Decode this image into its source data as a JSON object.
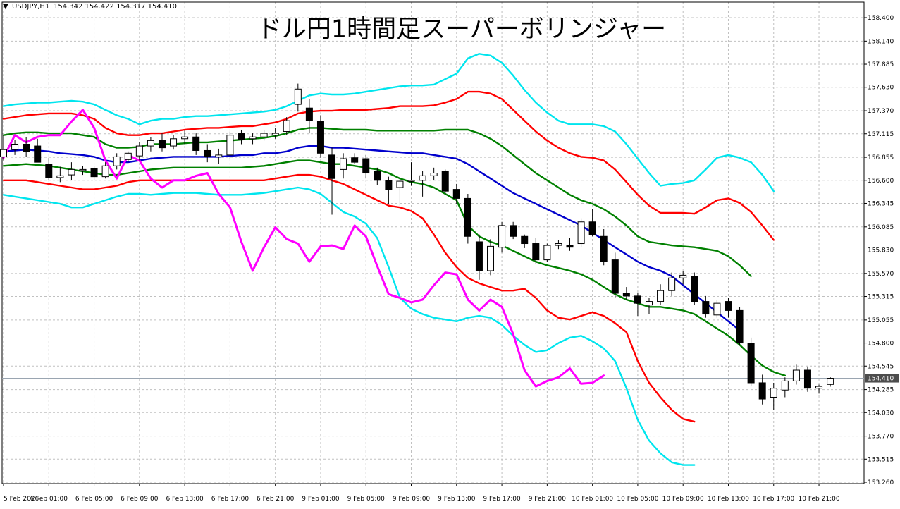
{
  "header": {
    "symbol": "USDJPY,H1",
    "ohlc": "154.342 154.422 154.317 154.410",
    "title": "ドル円1時間足スーパーボリンジャー"
  },
  "colors": {
    "background": "#ffffff",
    "grid": "#c0c0c0",
    "axis": "#000000",
    "up_candle_fill": "#ffffff",
    "down_candle_fill": "#000000",
    "sma": "#0000cc",
    "band1": "#008000",
    "band2": "#ff0000",
    "band3": "#00e5ee",
    "lagging_span": "#ff00ff",
    "price_line": "#9aa5b1",
    "price_label_bg": "#4d4d4d"
  },
  "chart_data": {
    "type": "line",
    "ylim": [
      153.26,
      158.4
    ],
    "xlim": [
      0,
      94
    ],
    "y_ticks": [
      "158.400",
      "158.140",
      "157.885",
      "157.630",
      "157.370",
      "157.115",
      "156.855",
      "156.600",
      "156.345",
      "156.085",
      "155.830",
      "155.570",
      "155.315",
      "155.055",
      "154.800",
      "154.545",
      "154.285",
      "154.030",
      "153.770",
      "153.515",
      "153.260"
    ],
    "x_ticks": [
      {
        "label": "5 Feb 2026",
        "i": 0
      },
      {
        "label": "6 Feb 01:00",
        "i": 4
      },
      {
        "label": "6 Feb 05:00",
        "i": 8
      },
      {
        "label": "6 Feb 09:00",
        "i": 12
      },
      {
        "label": "6 Feb 13:00",
        "i": 16
      },
      {
        "label": "6 Feb 17:00",
        "i": 20
      },
      {
        "label": "6 Feb 21:00",
        "i": 24
      },
      {
        "label": "9 Feb 01:00",
        "i": 28
      },
      {
        "label": "9 Feb 05:00",
        "i": 32
      },
      {
        "label": "9 Feb 09:00",
        "i": 36
      },
      {
        "label": "9 Feb 13:00",
        "i": 40
      },
      {
        "label": "9 Feb 17:00",
        "i": 44
      },
      {
        "label": "9 Feb 21:00",
        "i": 48
      },
      {
        "label": "10 Feb 01:00",
        "i": 52
      },
      {
        "label": "10 Feb 05:00",
        "i": 56
      },
      {
        "label": "10 Feb 09:00",
        "i": 60
      },
      {
        "label": "10 Feb 13:00",
        "i": 64
      },
      {
        "label": "10 Feb 17:00",
        "i": 68
      },
      {
        "label": "10 Feb 21:00",
        "i": 72
      }
    ],
    "current_price": {
      "value": 154.41,
      "label": "154.410"
    },
    "candles": [
      {
        "o": 156.86,
        "h": 157.1,
        "l": 156.82,
        "c": 156.94
      },
      {
        "o": 156.94,
        "h": 157.05,
        "l": 156.88,
        "c": 157.0
      },
      {
        "o": 157.0,
        "h": 157.08,
        "l": 156.86,
        "c": 156.92
      },
      {
        "o": 156.98,
        "h": 157.06,
        "l": 156.8,
        "c": 156.8
      },
      {
        "o": 156.78,
        "h": 156.85,
        "l": 156.6,
        "c": 156.63
      },
      {
        "o": 156.63,
        "h": 156.75,
        "l": 156.58,
        "c": 156.65
      },
      {
        "o": 156.66,
        "h": 156.8,
        "l": 156.6,
        "c": 156.72
      },
      {
        "o": 156.72,
        "h": 156.76,
        "l": 156.66,
        "c": 156.72
      },
      {
        "o": 156.73,
        "h": 156.76,
        "l": 156.6,
        "c": 156.64
      },
      {
        "o": 156.64,
        "h": 156.8,
        "l": 156.62,
        "c": 156.76
      },
      {
        "o": 156.76,
        "h": 156.9,
        "l": 156.72,
        "c": 156.86
      },
      {
        "o": 156.83,
        "h": 156.92,
        "l": 156.8,
        "c": 156.9
      },
      {
        "o": 156.87,
        "h": 157.02,
        "l": 156.82,
        "c": 156.98
      },
      {
        "o": 156.98,
        "h": 157.08,
        "l": 156.92,
        "c": 157.04
      },
      {
        "o": 157.04,
        "h": 157.12,
        "l": 156.92,
        "c": 156.96
      },
      {
        "o": 156.98,
        "h": 157.1,
        "l": 156.94,
        "c": 157.06
      },
      {
        "o": 157.06,
        "h": 157.15,
        "l": 157.0,
        "c": 157.08
      },
      {
        "o": 157.08,
        "h": 157.12,
        "l": 156.88,
        "c": 156.93
      },
      {
        "o": 156.93,
        "h": 157.0,
        "l": 156.8,
        "c": 156.86
      },
      {
        "o": 156.86,
        "h": 156.95,
        "l": 156.78,
        "c": 156.88
      },
      {
        "o": 156.88,
        "h": 157.14,
        "l": 156.84,
        "c": 157.1
      },
      {
        "o": 157.12,
        "h": 157.16,
        "l": 157.0,
        "c": 157.05
      },
      {
        "o": 157.06,
        "h": 157.12,
        "l": 157.0,
        "c": 157.08
      },
      {
        "o": 157.08,
        "h": 157.16,
        "l": 157.04,
        "c": 157.12
      },
      {
        "o": 157.1,
        "h": 157.18,
        "l": 157.06,
        "c": 157.12
      },
      {
        "o": 157.14,
        "h": 157.3,
        "l": 157.1,
        "c": 157.26
      },
      {
        "o": 157.44,
        "h": 157.67,
        "l": 157.36,
        "c": 157.61
      },
      {
        "o": 157.4,
        "h": 157.5,
        "l": 157.12,
        "c": 157.26
      },
      {
        "o": 157.25,
        "h": 157.32,
        "l": 156.85,
        "c": 156.9
      },
      {
        "o": 156.88,
        "h": 156.96,
        "l": 156.22,
        "c": 156.62
      },
      {
        "o": 156.72,
        "h": 156.9,
        "l": 156.62,
        "c": 156.84
      },
      {
        "o": 156.85,
        "h": 156.9,
        "l": 156.78,
        "c": 156.8
      },
      {
        "o": 156.84,
        "h": 156.88,
        "l": 156.62,
        "c": 156.68
      },
      {
        "o": 156.7,
        "h": 156.74,
        "l": 156.55,
        "c": 156.6
      },
      {
        "o": 156.6,
        "h": 156.64,
        "l": 156.34,
        "c": 156.5
      },
      {
        "o": 156.52,
        "h": 156.62,
        "l": 156.32,
        "c": 156.59
      },
      {
        "o": 156.6,
        "h": 156.8,
        "l": 156.54,
        "c": 156.6
      },
      {
        "o": 156.6,
        "h": 156.7,
        "l": 156.42,
        "c": 156.65
      },
      {
        "o": 156.65,
        "h": 156.74,
        "l": 156.6,
        "c": 156.68
      },
      {
        "o": 156.7,
        "h": 156.72,
        "l": 156.44,
        "c": 156.48
      },
      {
        "o": 156.5,
        "h": 156.56,
        "l": 156.34,
        "c": 156.4
      },
      {
        "o": 156.4,
        "h": 156.45,
        "l": 155.9,
        "c": 155.98
      },
      {
        "o": 155.92,
        "h": 156.0,
        "l": 155.5,
        "c": 155.6
      },
      {
        "o": 155.6,
        "h": 155.95,
        "l": 155.55,
        "c": 155.87
      },
      {
        "o": 155.86,
        "h": 156.14,
        "l": 155.8,
        "c": 156.1
      },
      {
        "o": 156.1,
        "h": 156.14,
        "l": 155.95,
        "c": 155.98
      },
      {
        "o": 155.98,
        "h": 156.0,
        "l": 155.85,
        "c": 155.9
      },
      {
        "o": 155.9,
        "h": 155.96,
        "l": 155.68,
        "c": 155.72
      },
      {
        "o": 155.72,
        "h": 155.9,
        "l": 155.7,
        "c": 155.88
      },
      {
        "o": 155.88,
        "h": 155.94,
        "l": 155.84,
        "c": 155.9
      },
      {
        "o": 155.88,
        "h": 155.96,
        "l": 155.82,
        "c": 155.86
      },
      {
        "o": 155.9,
        "h": 156.18,
        "l": 155.86,
        "c": 156.14
      },
      {
        "o": 156.14,
        "h": 156.28,
        "l": 155.98,
        "c": 156.0
      },
      {
        "o": 155.98,
        "h": 156.06,
        "l": 155.66,
        "c": 155.7
      },
      {
        "o": 155.72,
        "h": 155.8,
        "l": 155.3,
        "c": 155.35
      },
      {
        "o": 155.35,
        "h": 155.42,
        "l": 155.28,
        "c": 155.32
      },
      {
        "o": 155.32,
        "h": 155.36,
        "l": 155.1,
        "c": 155.24
      },
      {
        "o": 155.22,
        "h": 155.3,
        "l": 155.12,
        "c": 155.26
      },
      {
        "o": 155.26,
        "h": 155.45,
        "l": 155.22,
        "c": 155.38
      },
      {
        "o": 155.38,
        "h": 155.58,
        "l": 155.32,
        "c": 155.52
      },
      {
        "o": 155.52,
        "h": 155.6,
        "l": 155.45,
        "c": 155.55
      },
      {
        "o": 155.54,
        "h": 155.58,
        "l": 155.22,
        "c": 155.26
      },
      {
        "o": 155.26,
        "h": 155.32,
        "l": 155.08,
        "c": 155.12
      },
      {
        "o": 155.11,
        "h": 155.28,
        "l": 155.08,
        "c": 155.24
      },
      {
        "o": 155.26,
        "h": 155.3,
        "l": 155.08,
        "c": 155.16
      },
      {
        "o": 155.16,
        "h": 155.2,
        "l": 154.78,
        "c": 154.8
      },
      {
        "o": 154.8,
        "h": 154.86,
        "l": 154.32,
        "c": 154.36
      },
      {
        "o": 154.36,
        "h": 154.45,
        "l": 154.12,
        "c": 154.18
      },
      {
        "o": 154.2,
        "h": 154.36,
        "l": 154.06,
        "c": 154.3
      },
      {
        "o": 154.28,
        "h": 154.42,
        "l": 154.2,
        "c": 154.38
      },
      {
        "o": 154.38,
        "h": 154.56,
        "l": 154.34,
        "c": 154.5
      },
      {
        "o": 154.5,
        "h": 154.54,
        "l": 154.26,
        "c": 154.3
      },
      {
        "o": 154.3,
        "h": 154.34,
        "l": 154.24,
        "c": 154.32
      },
      {
        "o": 154.342,
        "h": 154.422,
        "l": 154.317,
        "c": 154.41
      }
    ],
    "series": [
      {
        "color": "#00e5ee",
        "values": [
          157.42,
          157.44,
          157.45,
          157.46,
          157.46,
          157.47,
          157.48,
          157.47,
          157.44,
          157.38,
          157.32,
          157.28,
          157.22,
          157.26,
          157.28,
          157.28,
          157.3,
          157.31,
          157.31,
          157.32,
          157.33,
          157.34,
          157.35,
          157.36,
          157.38,
          157.42,
          157.48,
          157.54,
          157.56,
          157.55,
          157.55,
          157.56,
          157.58,
          157.6,
          157.62,
          157.64,
          157.65,
          157.65,
          157.66,
          157.72,
          157.78,
          157.95,
          158.0,
          157.98,
          157.9,
          157.76,
          157.6,
          157.46,
          157.35,
          157.26,
          157.22,
          157.22,
          157.22,
          157.2,
          157.14,
          157.0,
          156.84,
          156.68,
          156.54,
          156.56,
          156.57,
          156.6,
          156.72,
          156.85,
          156.88,
          156.85,
          156.8,
          156.66,
          156.48
        ]
      },
      {
        "color": "#ff0000",
        "values": [
          157.28,
          157.3,
          157.32,
          157.33,
          157.34,
          157.34,
          157.34,
          157.32,
          157.28,
          157.18,
          157.12,
          157.1,
          157.1,
          157.12,
          157.12,
          157.14,
          157.16,
          157.17,
          157.18,
          157.18,
          157.19,
          157.2,
          157.2,
          157.22,
          157.24,
          157.28,
          157.34,
          157.36,
          157.37,
          157.37,
          157.38,
          157.38,
          157.38,
          157.39,
          157.4,
          157.42,
          157.42,
          157.42,
          157.43,
          157.46,
          157.5,
          157.58,
          157.58,
          157.56,
          157.5,
          157.38,
          157.26,
          157.14,
          157.04,
          156.96,
          156.9,
          156.86,
          156.85,
          156.82,
          156.72,
          156.58,
          156.44,
          156.32,
          156.24,
          156.24,
          156.24,
          156.23,
          156.3,
          156.38,
          156.4,
          156.35,
          156.25,
          156.1,
          155.94
        ]
      },
      {
        "color": "#008000",
        "values": [
          157.1,
          157.12,
          157.13,
          157.13,
          157.12,
          157.12,
          157.12,
          157.1,
          157.08,
          157.0,
          156.96,
          156.96,
          156.97,
          157.0,
          157.0,
          157.0,
          157.01,
          157.02,
          157.02,
          157.03,
          157.04,
          157.05,
          157.06,
          157.07,
          157.09,
          157.12,
          157.16,
          157.18,
          157.18,
          157.17,
          157.16,
          157.16,
          157.16,
          157.15,
          157.15,
          157.15,
          157.15,
          157.15,
          157.15,
          157.16,
          157.16,
          157.16,
          157.12,
          157.06,
          156.98,
          156.88,
          156.78,
          156.68,
          156.6,
          156.52,
          156.44,
          156.38,
          156.34,
          156.28,
          156.2,
          156.1,
          155.98,
          155.92,
          155.9,
          155.88,
          155.87,
          155.86,
          155.84,
          155.82,
          155.76,
          155.66,
          155.54
        ]
      },
      {
        "color": "#0000cc",
        "values": [
          156.92,
          156.93,
          156.94,
          156.93,
          156.92,
          156.9,
          156.89,
          156.88,
          156.86,
          156.82,
          156.8,
          156.8,
          156.82,
          156.84,
          156.85,
          156.86,
          156.86,
          156.86,
          156.86,
          156.86,
          156.87,
          156.88,
          156.88,
          156.9,
          156.9,
          156.92,
          156.96,
          156.98,
          156.98,
          156.96,
          156.96,
          156.95,
          156.94,
          156.93,
          156.92,
          156.91,
          156.9,
          156.9,
          156.88,
          156.86,
          156.84,
          156.78,
          156.7,
          156.62,
          156.54,
          156.46,
          156.4,
          156.34,
          156.28,
          156.22,
          156.16,
          156.1,
          156.02,
          155.94,
          155.86,
          155.78,
          155.7,
          155.64,
          155.6,
          155.54,
          155.44,
          155.34,
          155.24,
          155.14,
          155.04,
          154.94
        ]
      },
      {
        "color": "#008000",
        "values": [
          156.76,
          156.77,
          156.78,
          156.77,
          156.76,
          156.74,
          156.72,
          156.7,
          156.68,
          156.66,
          156.66,
          156.68,
          156.7,
          156.72,
          156.73,
          156.74,
          156.74,
          156.74,
          156.74,
          156.74,
          156.74,
          156.74,
          156.75,
          156.76,
          156.78,
          156.8,
          156.82,
          156.82,
          156.8,
          156.78,
          156.78,
          156.76,
          156.74,
          156.72,
          156.68,
          156.62,
          156.58,
          156.56,
          156.52,
          156.45,
          156.38,
          156.1,
          155.98,
          155.92,
          155.88,
          155.82,
          155.76,
          155.7,
          155.66,
          155.63,
          155.6,
          155.56,
          155.5,
          155.42,
          155.34,
          155.28,
          155.24,
          155.2,
          155.2,
          155.18,
          155.16,
          155.12,
          155.04,
          154.96,
          154.88,
          154.78,
          154.66,
          154.55,
          154.48,
          154.44
        ]
      },
      {
        "color": "#ff0000",
        "values": [
          156.6,
          156.6,
          156.6,
          156.58,
          156.56,
          156.54,
          156.52,
          156.5,
          156.5,
          156.52,
          156.54,
          156.58,
          156.6,
          156.6,
          156.6,
          156.6,
          156.6,
          156.6,
          156.6,
          156.6,
          156.6,
          156.6,
          156.6,
          156.6,
          156.62,
          156.64,
          156.66,
          156.66,
          156.64,
          156.6,
          156.56,
          156.5,
          156.44,
          156.38,
          156.32,
          156.3,
          156.26,
          156.18,
          156.0,
          155.8,
          155.64,
          155.52,
          155.46,
          155.42,
          155.38,
          155.38,
          155.4,
          155.3,
          155.16,
          155.08,
          155.06,
          155.1,
          155.14,
          155.1,
          155.02,
          154.92,
          154.6,
          154.36,
          154.2,
          154.06,
          153.96,
          153.93
        ]
      },
      {
        "color": "#00e5ee",
        "values": [
          156.44,
          156.42,
          156.4,
          156.38,
          156.36,
          156.34,
          156.3,
          156.3,
          156.34,
          156.38,
          156.42,
          156.45,
          156.45,
          156.44,
          156.45,
          156.46,
          156.46,
          156.46,
          156.45,
          156.44,
          156.44,
          156.44,
          156.45,
          156.46,
          156.48,
          156.5,
          156.52,
          156.5,
          156.45,
          156.35,
          156.25,
          156.2,
          156.12,
          155.96,
          155.64,
          155.3,
          155.18,
          155.12,
          155.08,
          155.06,
          155.04,
          155.08,
          155.1,
          155.08,
          155.0,
          154.88,
          154.78,
          154.7,
          154.72,
          154.8,
          154.86,
          154.88,
          154.82,
          154.74,
          154.6,
          154.3,
          153.95,
          153.72,
          153.58,
          153.48,
          153.45,
          153.45
        ]
      },
      {
        "color": "#ff00ff",
        "values": [
          156.85,
          157.1,
          157.02,
          157.08,
          157.1,
          157.1,
          157.25,
          157.38,
          157.18,
          156.82,
          156.62,
          156.88,
          156.82,
          156.62,
          156.52,
          156.6,
          156.6,
          156.65,
          156.68,
          156.45,
          156.3,
          155.92,
          155.6,
          155.86,
          156.08,
          155.95,
          155.9,
          155.7,
          155.87,
          155.88,
          155.84,
          156.1,
          155.98,
          155.65,
          155.34,
          155.3,
          155.25,
          155.28,
          155.44,
          155.58,
          155.56,
          155.28,
          155.16,
          155.28,
          155.2,
          154.9,
          154.5,
          154.32,
          154.38,
          154.42,
          154.52,
          154.35,
          154.36,
          154.44
        ]
      }
    ]
  }
}
